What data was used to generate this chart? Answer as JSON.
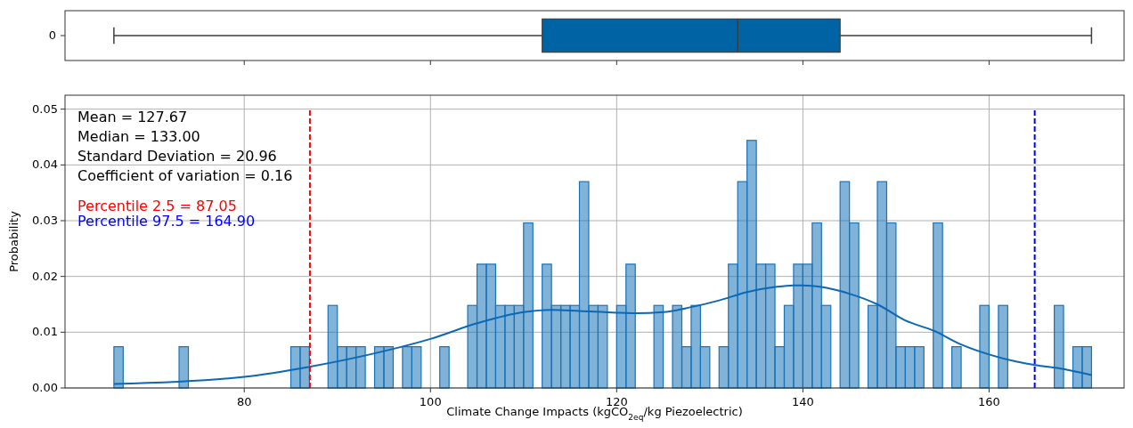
{
  "chart_data": [
    {
      "type": "box",
      "orientation": "horizontal",
      "categories": [
        "0"
      ],
      "color": "#0064a4",
      "boxes": [
        {
          "low": 66,
          "q1": 112,
          "median": 133,
          "q3": 144,
          "high": 171
        }
      ],
      "xlim": [
        60.75,
        174.5
      ],
      "xticks": [
        80,
        100,
        120,
        140,
        160
      ],
      "tick_labels": "y",
      "grid": false
    },
    {
      "type": "histogram",
      "xlabel": "Climate Change Impacts (kgCO$_{2eq}$/kg Piezoelectric)",
      "ylabel": "Probability",
      "xlim": [
        60.75,
        174.5
      ],
      "xticks": [
        80,
        100,
        120,
        140,
        160
      ],
      "ylim": [
        0,
        0.0525
      ],
      "yticks": [
        {
          "value": 0,
          "label": "0.00"
        },
        {
          "value": 0.01,
          "label": "0.01"
        },
        {
          "value": 0.02,
          "label": "0.02"
        },
        {
          "value": 0.03,
          "label": "0.03"
        },
        {
          "value": 0.04,
          "label": "0.04"
        },
        {
          "value": 0.05,
          "label": "0.05"
        }
      ],
      "grid": true,
      "annotations": [
        "Mean = 127.67",
        "Median = 133.00",
        "Standard Deviation = 20.96",
        "Coefficient of variation = 0.16"
      ],
      "ref_lines": [
        {
          "axis": "x",
          "value": 87.05,
          "label": "Percentile 2.5 = 87.05",
          "color": "#ff0000",
          "line_style": "dashed"
        },
        {
          "axis": "x",
          "value": 164.9,
          "label": "Percentile 97.5 = 164.90",
          "color": "#0000ff",
          "line_style": "dashed"
        }
      ],
      "series": [
        {
          "type": "histogram",
          "color": "#1a73b8",
          "bins": [
            66,
            67,
            68,
            69,
            70,
            71,
            72,
            73,
            74,
            75,
            76,
            77,
            78,
            79,
            80,
            81,
            82,
            83,
            84,
            85,
            86,
            87,
            88,
            89,
            90,
            91,
            92,
            93,
            94,
            95,
            96,
            97,
            98,
            99,
            100,
            101,
            102,
            103,
            104,
            105,
            106,
            107,
            108,
            109,
            110,
            111,
            112,
            113,
            114,
            115,
            116,
            117,
            118,
            119,
            120,
            121,
            122,
            123,
            124,
            125,
            126,
            127,
            128,
            129,
            130,
            131,
            132,
            133,
            134,
            135,
            136,
            137,
            138,
            139,
            140,
            141,
            142,
            143,
            144,
            145,
            146,
            147,
            148,
            149,
            150,
            151,
            152,
            153,
            154,
            155,
            156,
            157,
            158,
            159,
            160,
            161,
            162,
            163,
            164,
            165,
            166,
            167,
            168,
            169,
            170,
            171
          ],
          "values": [
            0.0074,
            0,
            0,
            0,
            0,
            0,
            0,
            0.0074,
            0,
            0,
            0,
            0,
            0,
            0,
            0,
            0,
            0,
            0,
            0,
            0.0074,
            0.0074,
            0,
            0,
            0.0148,
            0.0074,
            0.0074,
            0.0074,
            0,
            0.0074,
            0.0074,
            0,
            0.0074,
            0.0074,
            0,
            0,
            0.0074,
            0,
            0,
            0.0148,
            0.0222,
            0.0222,
            0.0148,
            0.0148,
            0.0148,
            0.0296,
            0,
            0.0222,
            0.0148,
            0.0148,
            0.0148,
            0.037,
            0.0148,
            0.0148,
            0,
            0.0148,
            0.0222,
            0,
            0,
            0.0148,
            0,
            0.0148,
            0.0074,
            0.0148,
            0.0074,
            0,
            0.0074,
            0.0222,
            0.037,
            0.0444,
            0.0222,
            0.0222,
            0.0074,
            0.0148,
            0.0222,
            0.0222,
            0.0296,
            0.0148,
            0,
            0.037,
            0.0296,
            0,
            0.0148,
            0.037,
            0.0296,
            0.0074,
            0.0074,
            0.0074,
            0,
            0.0296,
            0,
            0.0074,
            0,
            0,
            0.0148,
            0,
            0.0148,
            0,
            0,
            0,
            0,
            0,
            0.0148,
            0,
            0.0074,
            0.0074
          ]
        },
        {
          "type": "line",
          "color": "#0a68b4",
          "x": [
            66,
            80,
            87,
            95,
            100,
            105,
            110,
            113,
            116,
            120,
            122,
            125,
            128,
            131,
            134,
            137,
            139,
            140,
            142,
            145,
            148,
            151,
            154,
            157,
            160,
            163,
            165,
            168,
            171
          ],
          "values": [
            0.0007,
            0.002,
            0.0038,
            0.0066,
            0.0088,
            0.0116,
            0.0136,
            0.014,
            0.0138,
            0.0135,
            0.0134,
            0.0136,
            0.0145,
            0.0157,
            0.0172,
            0.0181,
            0.0184,
            0.0184,
            0.0181,
            0.0169,
            0.015,
            0.0121,
            0.0103,
            0.0078,
            0.006,
            0.0047,
            0.0041,
            0.0034,
            0.0023
          ]
        }
      ]
    }
  ]
}
